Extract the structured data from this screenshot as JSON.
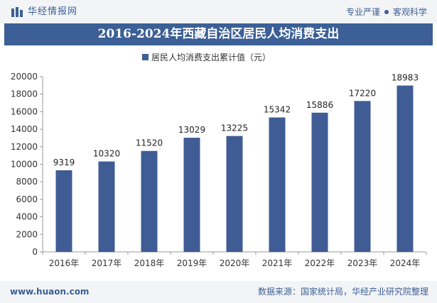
{
  "header": {
    "brand": "华经情报网",
    "slogan_left": "专业严谨",
    "slogan_right": "客观科学"
  },
  "title": "2016-2024年西藏自治区居民人均消费支出",
  "footer": {
    "url": "www.huaon.com",
    "source": "数据来源：国家统计局，华经产业研究院整理"
  },
  "colors": {
    "brand": "#3b5f96",
    "bar": "#3f5c94"
  },
  "chart_data": {
    "type": "bar",
    "categories": [
      "2016年",
      "2017年",
      "2018年",
      "2019年",
      "2020年",
      "2021年",
      "2022年",
      "2023年",
      "2024年"
    ],
    "series": [
      {
        "name": "居民人均消费支出累计值（元）",
        "values": [
          9319,
          10320,
          11520,
          13029,
          13225,
          15342,
          15886,
          17220,
          18983
        ]
      }
    ],
    "ylim": [
      0,
      20000
    ],
    "yticks": [
      0,
      2000,
      4000,
      6000,
      8000,
      10000,
      12000,
      14000,
      16000,
      18000,
      20000
    ],
    "grid": false,
    "legend_position": "top-center",
    "data_labels": true
  }
}
